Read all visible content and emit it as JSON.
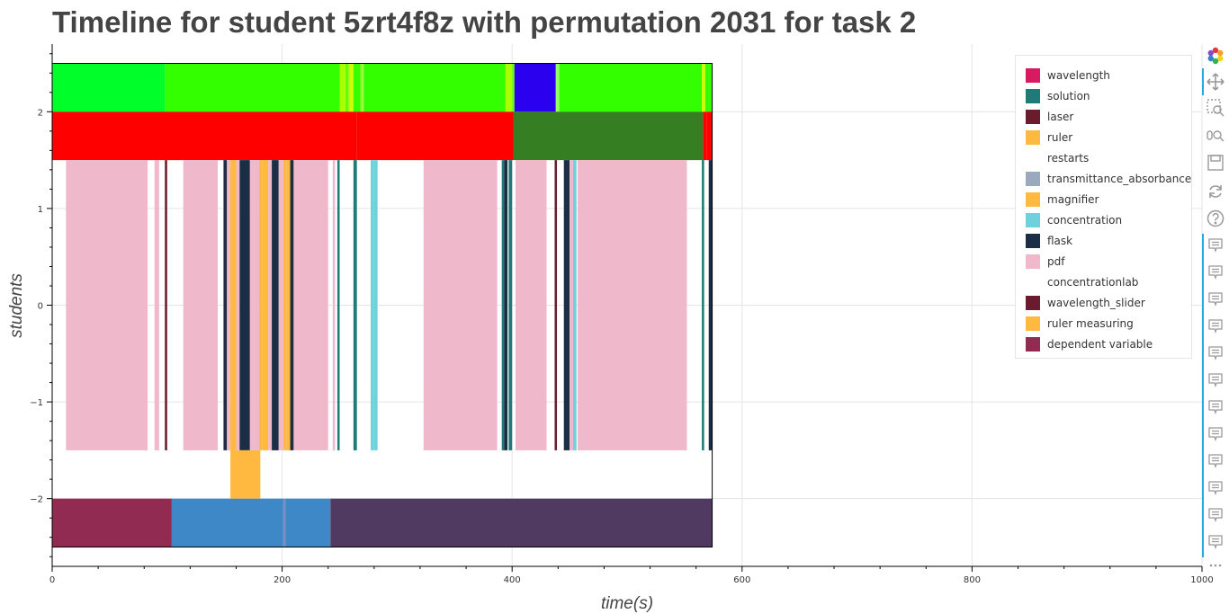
{
  "chart_data": {
    "type": "timeline",
    "title": "Timeline for student 5zrt4f8z with permutation 2031 for task 2",
    "xlabel": "time(s)",
    "ylabel": "students",
    "xlim": [
      0,
      1000
    ],
    "ylim": [
      -2.7,
      2.7
    ],
    "x_ticks": [
      0,
      200,
      400,
      600,
      800,
      1000
    ],
    "x_tick_labels": [
      "0",
      "200",
      "400",
      "600",
      "800",
      "1000"
    ],
    "y_ticks": [
      -2,
      -1,
      0,
      1,
      2
    ],
    "y_tick_labels": [
      "−2",
      "−1",
      "0",
      "1",
      "2"
    ],
    "grid": true,
    "legend_position": "top-right",
    "legend": [
      {
        "label": "wavelength",
        "color": "#d81b60"
      },
      {
        "label": "solution",
        "color": "#1e7b77"
      },
      {
        "label": "laser",
        "color": "#6a1b2e"
      },
      {
        "label": "ruler",
        "color": "#ffb940"
      },
      {
        "label": "restarts",
        "color": ""
      },
      {
        "label": "transmittance_absorbance",
        "color": "#9aa9bd"
      },
      {
        "label": "magnifier",
        "color": "#ffb940"
      },
      {
        "label": "concentration",
        "color": "#6fd1db"
      },
      {
        "label": "flask",
        "color": "#1b2e45"
      },
      {
        "label": "pdf",
        "color": "#efb8cb"
      },
      {
        "label": "concentrationlab",
        "color": ""
      },
      {
        "label": "wavelength_slider",
        "color": "#6a1b2e"
      },
      {
        "label": "ruler measuring",
        "color": "#ffb940"
      },
      {
        "label": "dependent variable",
        "color": "#912b52"
      }
    ],
    "rows": [
      {
        "y0": 2.0,
        "y1": 2.5,
        "segments": [
          [
            0,
            98,
            "#00ff2a"
          ],
          [
            98,
            250,
            "#33ff00"
          ],
          [
            250,
            255,
            "#aaff00"
          ],
          [
            255,
            258,
            "#66ff00"
          ],
          [
            258,
            262,
            "#ccff00"
          ],
          [
            262,
            268,
            "#33ff00"
          ],
          [
            268,
            271,
            "#99ff33"
          ],
          [
            271,
            394,
            "#33ff00"
          ],
          [
            394,
            400,
            "#aaff00"
          ],
          [
            400,
            402,
            "#66ff00"
          ],
          [
            402,
            438,
            "#2a00ee"
          ],
          [
            438,
            441,
            "#99ff66"
          ],
          [
            441,
            565,
            "#33ff00"
          ],
          [
            565,
            568,
            "#ccff00"
          ],
          [
            568,
            574,
            "#33ff00"
          ]
        ]
      },
      {
        "y0": 1.5,
        "y1": 2.0,
        "segments": [
          [
            0,
            250,
            "#ff0000"
          ],
          [
            250,
            265,
            "#ff0000"
          ],
          [
            265,
            401,
            "#ff0000"
          ],
          [
            401,
            566,
            "#357f22"
          ],
          [
            566,
            569,
            "#ff0000"
          ],
          [
            569,
            574,
            "#ff0000"
          ]
        ]
      },
      {
        "y0": -1.5,
        "y1": 1.5,
        "segments": [
          [
            12,
            83,
            "#efb8cb"
          ],
          [
            89,
            93,
            "#efb8cb"
          ],
          [
            98,
            100,
            "#6a1b2e"
          ],
          [
            114,
            144,
            "#efb8cb"
          ],
          [
            149,
            152,
            "#1b2e45"
          ],
          [
            152,
            155,
            "#efb8cb"
          ],
          [
            155,
            160,
            "#ffb940"
          ],
          [
            160,
            163,
            "#efb8cb"
          ],
          [
            163,
            172,
            "#1b2e45"
          ],
          [
            172,
            176,
            "#efb8cb"
          ],
          [
            176,
            180,
            "#efb8cb"
          ],
          [
            180,
            183,
            "#ffb940"
          ],
          [
            183,
            188,
            "#ffb940"
          ],
          [
            188,
            191,
            "#efb8cb"
          ],
          [
            191,
            197,
            "#1b2e45"
          ],
          [
            197,
            201,
            "#efb8cb"
          ],
          [
            201,
            204,
            "#ffb940"
          ],
          [
            204,
            207,
            "#ffb940"
          ],
          [
            207,
            210,
            "#1b2e45"
          ],
          [
            210,
            212,
            "#efb8cb"
          ],
          [
            212,
            240,
            "#efb8cb"
          ],
          [
            244,
            246,
            "#efb8cb"
          ],
          [
            248,
            250,
            "#1e7b77"
          ],
          [
            262,
            265,
            "#1e7b77"
          ],
          [
            277,
            280,
            "#6fd1db"
          ],
          [
            280,
            283,
            "#6fd1db"
          ],
          [
            323,
            387,
            "#efb8cb"
          ],
          [
            391,
            393,
            "#1e7b77"
          ],
          [
            393,
            396,
            "#1b2e45"
          ],
          [
            397,
            400,
            "#1e7b77"
          ],
          [
            403,
            430,
            "#efb8cb"
          ],
          [
            437,
            439,
            "#6a1b2e"
          ],
          [
            445,
            450,
            "#1b2e45"
          ],
          [
            450,
            453,
            "#efb8cb"
          ],
          [
            453,
            456,
            "#6fd1db"
          ],
          [
            457,
            552,
            "#efb8cb"
          ],
          [
            565,
            567,
            "#1e7b77"
          ],
          [
            571,
            574,
            "#1b2e45"
          ]
        ]
      },
      {
        "y0": -2.0,
        "y1": -1.5,
        "segments": [
          [
            155,
            181,
            "#ffb940"
          ]
        ]
      },
      {
        "y0": -2.5,
        "y1": -2.0,
        "segments": [
          [
            0,
            104,
            "#912b52"
          ],
          [
            104,
            201,
            "#3e88c8"
          ],
          [
            201,
            203,
            "#7a8cc0"
          ],
          [
            203,
            242,
            "#3e88c8"
          ],
          [
            242,
            574,
            "#503a62"
          ]
        ]
      }
    ]
  }
}
